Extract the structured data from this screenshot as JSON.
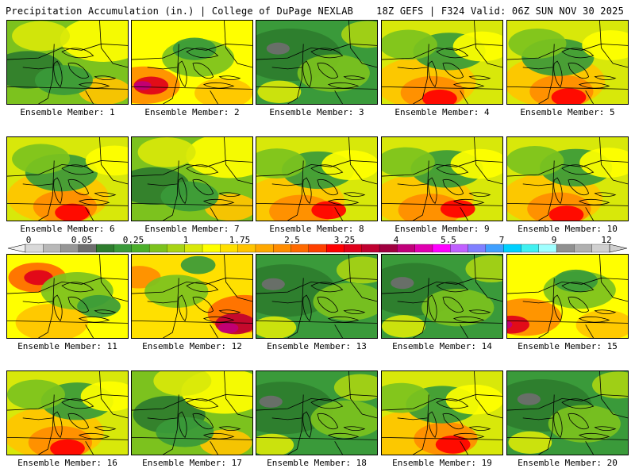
{
  "header": {
    "left": "Precipitation Accumulation (in.) | College of DuPage NEXLAB",
    "right": "18Z GEFS | F324 Valid: 06Z SUN NOV 30 2025"
  },
  "members": [
    {
      "label": "Ensemble Member: 1",
      "theme": "mixed"
    },
    {
      "label": "Ensemble Member: 2",
      "theme": "wet-sw"
    },
    {
      "label": "Ensemble Member: 3",
      "theme": "green"
    },
    {
      "label": "Ensemble Member: 4",
      "theme": "wet-s"
    },
    {
      "label": "Ensemble Member: 5",
      "theme": "wet-s"
    },
    {
      "label": "Ensemble Member: 6",
      "theme": "wet-s"
    },
    {
      "label": "Ensemble Member: 7",
      "theme": "mixed"
    },
    {
      "label": "Ensemble Member: 8",
      "theme": "wet-s"
    },
    {
      "label": "Ensemble Member: 9",
      "theme": "wet-s"
    },
    {
      "label": "Ensemble Member: 10",
      "theme": "wet-s"
    },
    {
      "label": "Ensemble Member: 11",
      "theme": "wet-n"
    },
    {
      "label": "Ensemble Member: 12",
      "theme": "wet-se"
    },
    {
      "label": "Ensemble Member: 13",
      "theme": "green"
    },
    {
      "label": "Ensemble Member: 14",
      "theme": "green"
    },
    {
      "label": "Ensemble Member: 15",
      "theme": "wet-sw"
    },
    {
      "label": "Ensemble Member: 16",
      "theme": "wet-s"
    },
    {
      "label": "Ensemble Member: 17",
      "theme": "mixed"
    },
    {
      "label": "Ensemble Member: 18",
      "theme": "green"
    },
    {
      "label": "Ensemble Member: 19",
      "theme": "wet-s"
    },
    {
      "label": "Ensemble Member: 20",
      "theme": "green"
    }
  ],
  "colorbar": {
    "unit": "in.",
    "tick_labels": [
      "0",
      "0.05",
      "0.25",
      "1",
      "1.75",
      "2.5",
      "3.25",
      "4",
      "5.5",
      "7",
      "9",
      "12"
    ],
    "colors": [
      "#d9d9d9",
      "#b8b8b8",
      "#969696",
      "#6e6e6e",
      "#2e7d2e",
      "#3a9a3a",
      "#4caf2a",
      "#7cc21e",
      "#a8d414",
      "#d8e80a",
      "#ffff00",
      "#ffe000",
      "#ffc400",
      "#ffa800",
      "#ff8c00",
      "#ff6a00",
      "#ff4000",
      "#ff0000",
      "#e0001a",
      "#c00030",
      "#a00040",
      "#c0007a",
      "#e000b0",
      "#ff00ff",
      "#c060ff",
      "#8080ff",
      "#40a0ff",
      "#00d0ff",
      "#40f0f0",
      "#a0ffff",
      "#909090",
      "#b0b0b0",
      "#d0d0d0"
    ]
  }
}
